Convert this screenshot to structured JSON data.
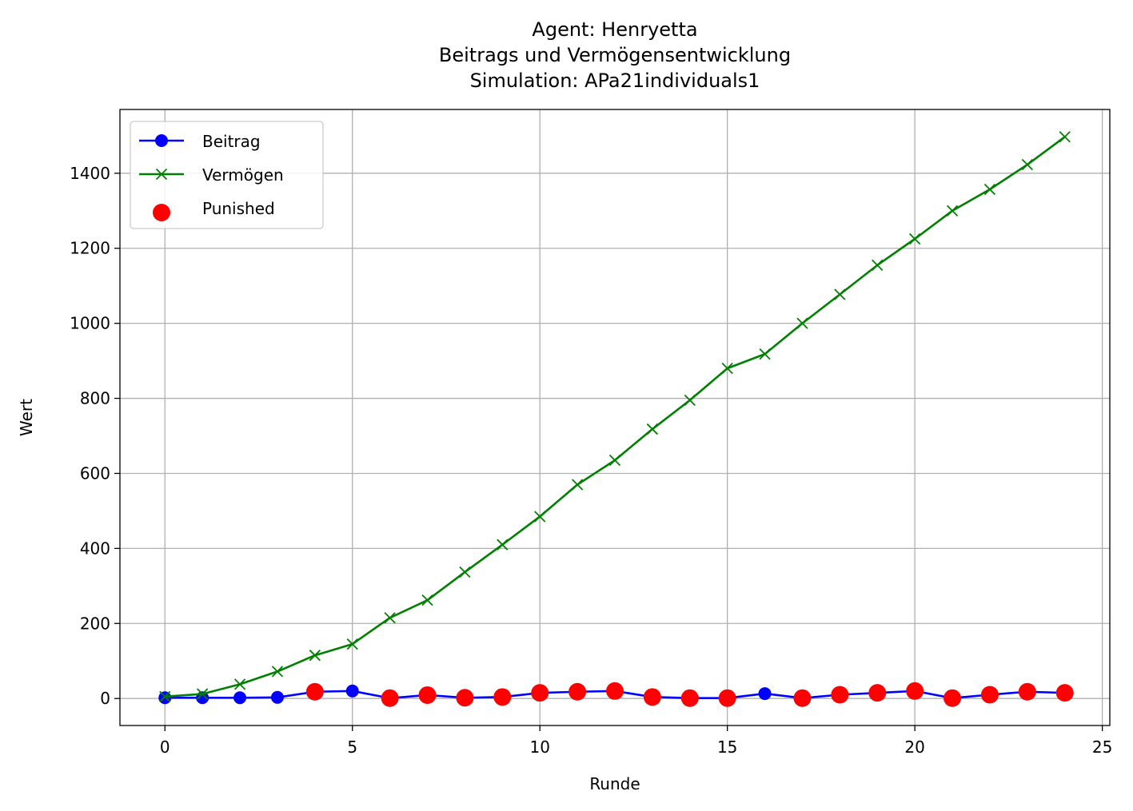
{
  "chart_data": {
    "type": "line",
    "title": [
      "Agent: Henryetta",
      "Beitrags und Vermögensentwicklung",
      "Simulation: APa21individuals1"
    ],
    "xlabel": "Runde",
    "ylabel": "Wert",
    "xlim": [
      -1.2,
      25.2
    ],
    "ylim": [
      -72,
      1570
    ],
    "xticks": [
      0,
      5,
      10,
      15,
      20,
      25
    ],
    "yticks": [
      0,
      200,
      400,
      600,
      800,
      1000,
      1200,
      1400
    ],
    "grid": true,
    "legend_position": "top-left",
    "x": [
      0,
      1,
      2,
      3,
      4,
      5,
      6,
      7,
      8,
      9,
      10,
      11,
      12,
      13,
      14,
      15,
      16,
      17,
      18,
      19,
      20,
      21,
      22,
      23,
      24
    ],
    "series": [
      {
        "name": "Beitrag",
        "color": "#0000ff",
        "marker": "circle",
        "values": [
          2,
          2,
          2,
          3,
          18,
          20,
          1,
          9,
          2,
          4,
          15,
          18,
          20,
          4,
          1,
          1,
          13,
          1,
          10,
          15,
          20,
          1,
          10,
          18,
          15
        ]
      },
      {
        "name": "Vermögen",
        "color": "#008000",
        "marker": "x",
        "values": [
          5,
          12,
          38,
          72,
          115,
          145,
          215,
          262,
          337,
          410,
          485,
          570,
          635,
          718,
          795,
          880,
          918,
          1000,
          1077,
          1155,
          1225,
          1300,
          1357,
          1423,
          1497
        ]
      }
    ],
    "punished": {
      "name": "Punished",
      "color": "#ff0000",
      "marker": "circle",
      "x": [
        4,
        6,
        7,
        8,
        9,
        10,
        11,
        12,
        13,
        14,
        15,
        17,
        18,
        19,
        20,
        21,
        22,
        23,
        24
      ],
      "values": [
        18,
        1,
        9,
        2,
        4,
        15,
        18,
        20,
        4,
        1,
        1,
        1,
        10,
        15,
        20,
        1,
        10,
        18,
        15
      ]
    }
  }
}
